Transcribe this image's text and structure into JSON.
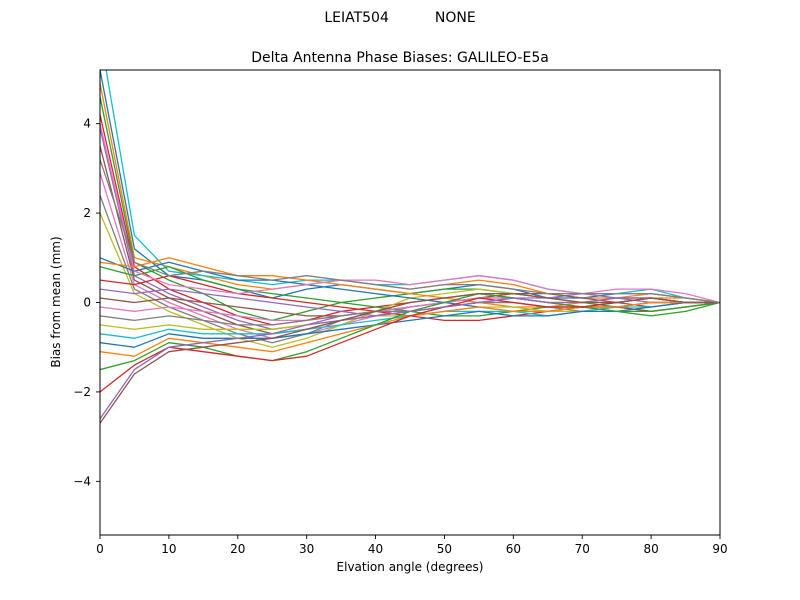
{
  "header": {
    "antenna": "LEIAT504",
    "radome": "NONE"
  },
  "chart_data": {
    "type": "line",
    "title": "Delta Antenna Phase Biases: GALILEO-E5a",
    "xlabel": "Elvation angle (degrees)",
    "ylabel": "Bias from mean (mm)",
    "xlim": [
      0,
      90
    ],
    "ylim": [
      -5.2,
      5.2
    ],
    "xticks": [
      0,
      10,
      20,
      30,
      40,
      50,
      60,
      70,
      80,
      90
    ],
    "yticks": [
      -4,
      -2,
      0,
      2,
      4
    ],
    "grid": false,
    "legend": "none",
    "frame_color": "#000000",
    "x": [
      0,
      5,
      10,
      15,
      20,
      25,
      30,
      35,
      40,
      45,
      50,
      55,
      60,
      65,
      70,
      75,
      80,
      85,
      90
    ],
    "series": [
      {
        "color": "#1f77b4",
        "values": [
          5.2,
          1.2,
          0.6,
          0.5,
          0.3,
          0.1,
          0.3,
          0.4,
          0.3,
          0.2,
          0.3,
          0.4,
          0.3,
          0.1,
          0.1,
          0.2,
          0.2,
          0.1,
          0.0
        ]
      },
      {
        "color": "#ff7f0e",
        "values": [
          4.9,
          1.0,
          0.8,
          0.6,
          0.4,
          0.3,
          0.4,
          0.5,
          0.4,
          0.3,
          0.4,
          0.5,
          0.4,
          0.2,
          0.1,
          0.1,
          0.2,
          0.1,
          0.0
        ]
      },
      {
        "color": "#2ca02c",
        "values": [
          4.6,
          0.9,
          0.5,
          0.2,
          -0.2,
          -0.4,
          -0.2,
          0.0,
          0.1,
          0.2,
          0.3,
          0.3,
          0.2,
          0.1,
          0.0,
          -0.1,
          -0.2,
          -0.1,
          0.0
        ]
      },
      {
        "color": "#d62728",
        "values": [
          4.2,
          0.8,
          0.3,
          0.0,
          -0.3,
          -0.5,
          -0.4,
          -0.2,
          -0.1,
          0.0,
          0.1,
          0.2,
          0.1,
          0.0,
          0.0,
          0.1,
          0.1,
          0.0,
          0.0
        ]
      },
      {
        "color": "#9467bd",
        "values": [
          3.9,
          0.6,
          0.2,
          -0.1,
          -0.4,
          -0.6,
          -0.5,
          -0.3,
          -0.2,
          -0.1,
          0.0,
          0.1,
          0.1,
          0.0,
          -0.1,
          -0.1,
          0.0,
          0.0,
          0.0
        ]
      },
      {
        "color": "#8c564b",
        "values": [
          3.5,
          0.5,
          0.1,
          -0.2,
          -0.5,
          -0.7,
          -0.6,
          -0.4,
          -0.3,
          -0.2,
          -0.1,
          0.0,
          0.0,
          -0.1,
          -0.1,
          0.0,
          0.1,
          0.0,
          0.0
        ]
      },
      {
        "color": "#e377c2",
        "values": [
          2.9,
          0.4,
          0.0,
          -0.3,
          -0.6,
          -0.8,
          -0.7,
          -0.5,
          -0.3,
          -0.1,
          0.0,
          0.1,
          0.2,
          0.1,
          0.0,
          0.0,
          0.1,
          0.0,
          0.0
        ]
      },
      {
        "color": "#7f7f7f",
        "values": [
          2.4,
          0.3,
          -0.1,
          -0.4,
          -0.7,
          -0.9,
          -0.7,
          -0.4,
          -0.2,
          0.0,
          0.1,
          0.2,
          0.1,
          0.0,
          -0.1,
          -0.1,
          0.0,
          0.0,
          0.0
        ]
      },
      {
        "color": "#bcbd22",
        "values": [
          2.0,
          0.2,
          -0.2,
          -0.5,
          -0.8,
          -1.0,
          -0.8,
          -0.5,
          -0.2,
          0.1,
          0.2,
          0.3,
          0.2,
          0.1,
          0.0,
          0.0,
          0.1,
          0.0,
          0.0
        ]
      },
      {
        "color": "#17becf",
        "values": [
          6.0,
          1.5,
          0.7,
          0.6,
          0.5,
          0.4,
          0.5,
          0.5,
          0.4,
          0.4,
          0.5,
          0.6,
          0.5,
          0.3,
          0.2,
          0.2,
          0.3,
          0.1,
          0.0
        ]
      },
      {
        "color": "#1f77b4",
        "values": [
          1.0,
          0.7,
          0.9,
          0.7,
          0.5,
          0.5,
          0.4,
          0.3,
          0.2,
          0.1,
          0.0,
          -0.1,
          -0.2,
          -0.2,
          -0.1,
          0.0,
          0.1,
          0.0,
          0.0
        ]
      },
      {
        "color": "#ff7f0e",
        "values": [
          0.9,
          0.8,
          1.0,
          0.8,
          0.6,
          0.6,
          0.5,
          0.4,
          0.3,
          0.2,
          0.1,
          0.0,
          -0.1,
          -0.1,
          0.0,
          0.1,
          0.1,
          0.1,
          0.0
        ]
      },
      {
        "color": "#2ca02c",
        "values": [
          0.8,
          0.6,
          0.8,
          0.5,
          0.3,
          0.2,
          0.1,
          0.0,
          -0.1,
          -0.2,
          -0.3,
          -0.3,
          -0.2,
          -0.1,
          -0.1,
          -0.2,
          -0.3,
          -0.2,
          0.0
        ]
      },
      {
        "color": "#d62728",
        "values": [
          0.5,
          0.4,
          0.6,
          0.4,
          0.2,
          0.1,
          0.0,
          -0.1,
          -0.2,
          -0.3,
          -0.4,
          -0.4,
          -0.3,
          -0.2,
          -0.1,
          -0.1,
          -0.2,
          -0.1,
          0.0
        ]
      },
      {
        "color": "#9467bd",
        "values": [
          0.3,
          0.2,
          0.3,
          0.2,
          0.1,
          0.0,
          -0.1,
          -0.2,
          -0.3,
          -0.2,
          -0.1,
          0.0,
          0.1,
          0.1,
          0.2,
          0.1,
          0.0,
          0.0,
          0.0
        ]
      },
      {
        "color": "#8c564b",
        "values": [
          0.1,
          0.0,
          0.1,
          0.0,
          -0.1,
          -0.2,
          -0.3,
          -0.3,
          -0.2,
          -0.1,
          0.0,
          0.1,
          0.2,
          0.2,
          0.1,
          0.0,
          -0.1,
          0.0,
          0.0
        ]
      },
      {
        "color": "#e377c2",
        "values": [
          -0.1,
          -0.2,
          -0.1,
          -0.2,
          -0.3,
          -0.4,
          -0.4,
          -0.3,
          -0.2,
          -0.1,
          0.0,
          0.1,
          0.1,
          0.0,
          -0.1,
          -0.1,
          0.0,
          0.0,
          0.0
        ]
      },
      {
        "color": "#7f7f7f",
        "values": [
          -0.3,
          -0.4,
          -0.3,
          -0.4,
          -0.5,
          -0.5,
          -0.4,
          -0.3,
          -0.2,
          -0.2,
          -0.1,
          0.0,
          0.0,
          -0.1,
          -0.2,
          -0.1,
          0.0,
          0.0,
          0.0
        ]
      },
      {
        "color": "#bcbd22",
        "values": [
          -0.5,
          -0.6,
          -0.5,
          -0.6,
          -0.6,
          -0.6,
          -0.5,
          -0.4,
          -0.3,
          -0.3,
          -0.2,
          -0.1,
          -0.1,
          -0.2,
          -0.2,
          -0.1,
          0.0,
          0.0,
          0.0
        ]
      },
      {
        "color": "#17becf",
        "values": [
          -0.7,
          -0.8,
          -0.6,
          -0.7,
          -0.7,
          -0.7,
          -0.6,
          -0.5,
          -0.4,
          -0.3,
          -0.2,
          -0.2,
          -0.2,
          -0.3,
          -0.2,
          -0.1,
          -0.1,
          0.0,
          0.0
        ]
      },
      {
        "color": "#1f77b4",
        "values": [
          -0.9,
          -1.0,
          -0.7,
          -0.8,
          -0.8,
          -0.8,
          -0.7,
          -0.6,
          -0.5,
          -0.4,
          -0.3,
          -0.2,
          -0.3,
          -0.3,
          -0.2,
          -0.2,
          -0.1,
          0.0,
          0.0
        ]
      },
      {
        "color": "#ff7f0e",
        "values": [
          -1.1,
          -1.2,
          -0.8,
          -0.9,
          -1.0,
          -1.1,
          -0.9,
          -0.7,
          -0.5,
          -0.3,
          -0.2,
          -0.1,
          -0.2,
          -0.2,
          -0.1,
          -0.1,
          0.0,
          0.0,
          0.0
        ]
      },
      {
        "color": "#2ca02c",
        "values": [
          -1.5,
          -1.3,
          -0.9,
          -1.0,
          -1.2,
          -1.3,
          -1.1,
          -0.8,
          -0.5,
          -0.2,
          0.0,
          0.2,
          0.1,
          0.0,
          -0.1,
          -0.2,
          -0.2,
          -0.1,
          0.0
        ]
      },
      {
        "color": "#d62728",
        "values": [
          -2.0,
          -1.4,
          -1.0,
          -1.1,
          -1.2,
          -1.3,
          -1.2,
          -0.9,
          -0.6,
          -0.3,
          -0.1,
          0.1,
          0.0,
          -0.1,
          -0.1,
          0.0,
          0.1,
          0.0,
          0.0
        ]
      },
      {
        "color": "#9467bd",
        "values": [
          -2.6,
          -1.5,
          -1.0,
          -0.9,
          -0.8,
          -0.7,
          -0.5,
          -0.4,
          -0.3,
          -0.2,
          -0.1,
          0.0,
          0.1,
          0.0,
          0.0,
          0.1,
          0.1,
          0.0,
          0.0
        ]
      },
      {
        "color": "#8c564b",
        "values": [
          -2.7,
          -1.6,
          -1.1,
          -1.0,
          -0.9,
          -0.8,
          -0.6,
          -0.4,
          -0.2,
          0.0,
          0.1,
          0.2,
          0.2,
          0.1,
          0.0,
          0.0,
          0.1,
          0.0,
          0.0
        ]
      },
      {
        "color": "#e377c2",
        "values": [
          4.0,
          0.7,
          0.4,
          0.3,
          0.2,
          0.3,
          0.4,
          0.5,
          0.5,
          0.4,
          0.5,
          0.6,
          0.5,
          0.3,
          0.2,
          0.3,
          0.3,
          0.2,
          0.0
        ]
      },
      {
        "color": "#7f7f7f",
        "values": [
          3.2,
          0.9,
          0.6,
          0.7,
          0.6,
          0.5,
          0.6,
          0.5,
          0.4,
          0.3,
          0.4,
          0.4,
          0.3,
          0.2,
          0.2,
          0.2,
          0.2,
          0.1,
          0.0
        ]
      }
    ]
  }
}
